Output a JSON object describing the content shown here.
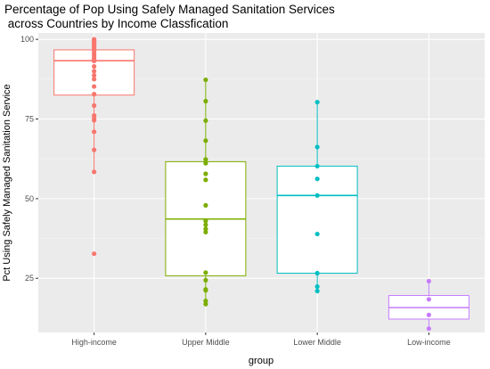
{
  "chart_data": {
    "type": "boxplot",
    "title_lines": [
      "Percentage of Pop Using Safely Managed Sanitation Services",
      " across Countries by Income Classfication"
    ],
    "xlabel": "group",
    "ylabel": "Pct Using Safely Managed Sanitation Service",
    "ylim": [
      8,
      102
    ],
    "yticks": [
      25,
      50,
      75,
      100
    ],
    "categories": [
      "High-income",
      "Upper Middle",
      "Lower Middle",
      "Low-income"
    ],
    "grid": true,
    "background": "#ebebeb",
    "series": [
      {
        "category": "High-income",
        "color": "#f8766d",
        "box": {
          "q1": 82.5,
          "median": 93.3,
          "q3": 96.7,
          "whisker_low": 58.4,
          "whisker_high": 100
        },
        "points": [
          100,
          99.7,
          99.3,
          98.9,
          98.5,
          98.1,
          97.6,
          97,
          96.4,
          95.6,
          95,
          94.3,
          93.8,
          93.2,
          91.5,
          90,
          88.7,
          87.5,
          85.2,
          82.8,
          79.2,
          76.1,
          75.2,
          74.6,
          71,
          65.3,
          58.4,
          32.7
        ]
      },
      {
        "category": "Upper Middle",
        "color": "#7cae00",
        "box": {
          "q1": 25.8,
          "median": 43.6,
          "q3": 61.6,
          "whisker_low": 16.9,
          "whisker_high": 87.3
        },
        "points": [
          87.3,
          80.6,
          74.5,
          68.2,
          62.3,
          61.1,
          57.8,
          55.9,
          47.9,
          43,
          41.8,
          40.5,
          39.5,
          26.8,
          24.4,
          21.5,
          21.2,
          17.9,
          16.9
        ]
      },
      {
        "category": "Lower Middle",
        "color": "#00bfc4",
        "box": {
          "q1": 26.6,
          "median": 51,
          "q3": 60.2,
          "whisker_low": 21,
          "whisker_high": 80.3
        },
        "points": [
          80.3,
          66.2,
          60.2,
          56.2,
          51,
          38.9,
          26.6,
          22.4,
          21
        ]
      },
      {
        "category": "Low-income",
        "color": "#c77cff",
        "box": {
          "q1": 12.2,
          "median": 15.8,
          "q3": 19.6,
          "whisker_low": 9.2,
          "whisker_high": 24.1
        },
        "points": [
          24.1,
          18.4,
          13.5,
          9.2
        ]
      }
    ]
  }
}
